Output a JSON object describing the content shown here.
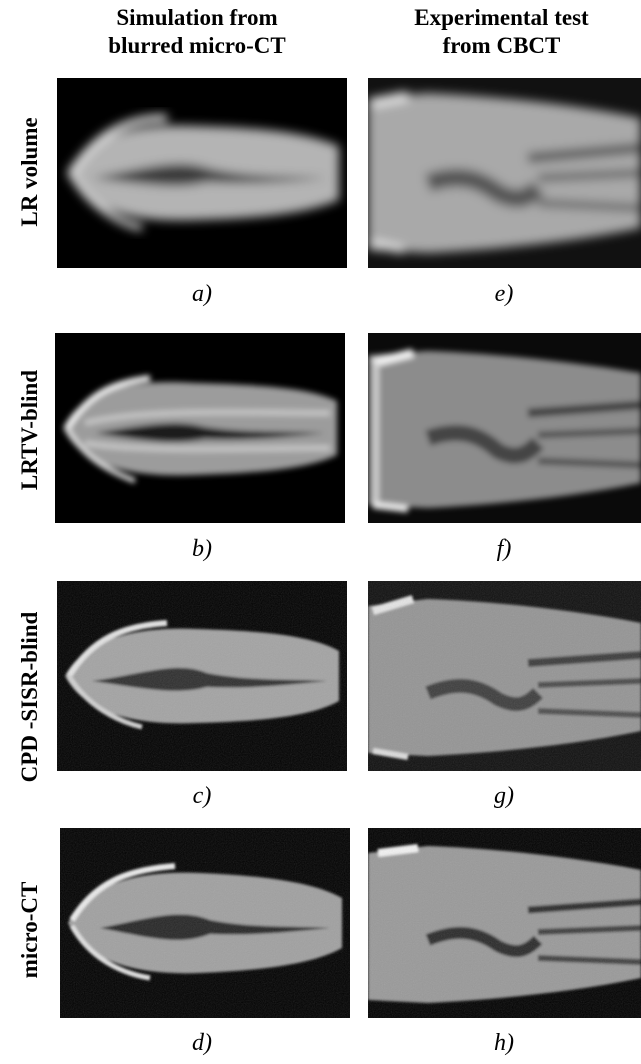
{
  "columns": [
    {
      "title_line1": "Simulation from",
      "title_line2": "blurred micro-CT"
    },
    {
      "title_line1": "Experimental test",
      "title_line2": "from CBCT"
    }
  ],
  "rows": [
    {
      "label": "LR volume",
      "captions": [
        "a)",
        "e)"
      ]
    },
    {
      "label": "LRTV-blind",
      "captions": [
        "b)",
        "f)"
      ]
    },
    {
      "label": "CPD -SISR-blind",
      "captions": [
        "c)",
        "g)"
      ]
    },
    {
      "label": "micro-CT",
      "captions": [
        "d)",
        "h)"
      ]
    }
  ]
}
